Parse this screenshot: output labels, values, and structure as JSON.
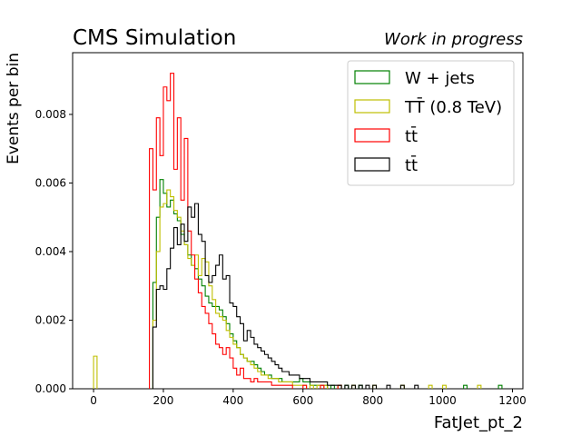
{
  "chart_data": {
    "type": "step-histogram",
    "title_left": "CMS Simulation",
    "title_right": "Work in progress",
    "xlabel": "FatJet_pt_2",
    "ylabel": "Events per bin",
    "xlim": [
      -60,
      1230
    ],
    "ylim": [
      0,
      0.0098
    ],
    "x_ticks": [
      0,
      200,
      400,
      600,
      800,
      1000,
      1200
    ],
    "y_ticks": [
      0.0,
      0.002,
      0.004,
      0.006,
      0.008
    ],
    "y_tick_labels": [
      "0.000",
      "0.002",
      "0.004",
      "0.006",
      "0.008"
    ],
    "grid": false,
    "legend_position": "top-right",
    "bin_width": 10,
    "series": [
      {
        "name": "W + jets",
        "color": "#008000",
        "points": [
          [
            170,
            0.0031
          ],
          [
            180,
            0.005
          ],
          [
            190,
            0.0061
          ],
          [
            200,
            0.0057
          ],
          [
            210,
            0.0053
          ],
          [
            220,
            0.0055
          ],
          [
            230,
            0.0051
          ],
          [
            240,
            0.0049
          ],
          [
            250,
            0.0045
          ],
          [
            260,
            0.0042
          ],
          [
            270,
            0.0039
          ],
          [
            280,
            0.0036
          ],
          [
            290,
            0.0035
          ],
          [
            300,
            0.0032
          ],
          [
            310,
            0.003
          ],
          [
            320,
            0.0027
          ],
          [
            330,
            0.0025
          ],
          [
            340,
            0.0024
          ],
          [
            350,
            0.0024
          ],
          [
            360,
            0.0023
          ],
          [
            370,
            0.0021
          ],
          [
            380,
            0.0019
          ],
          [
            390,
            0.0016
          ],
          [
            400,
            0.0014
          ],
          [
            410,
            0.0012
          ],
          [
            420,
            0.001
          ],
          [
            430,
            0.0009
          ],
          [
            440,
            0.0008
          ],
          [
            450,
            0.0008
          ],
          [
            460,
            0.0007
          ],
          [
            470,
            0.0006
          ],
          [
            480,
            0.0005
          ],
          [
            490,
            0.0004
          ],
          [
            500,
            0.0004
          ],
          [
            510,
            0.0003
          ],
          [
            520,
            0.0003
          ],
          [
            530,
            0.0003
          ],
          [
            540,
            0.0002
          ],
          [
            550,
            0.0002
          ],
          [
            560,
            0.0002
          ],
          [
            570,
            0.0002
          ],
          [
            580,
            0.0002
          ],
          [
            590,
            0.0003
          ],
          [
            600,
            0.0002
          ],
          [
            610,
            0.0002
          ],
          [
            620,
            0.0001
          ],
          [
            630,
            0.0001
          ],
          [
            640,
            0.0001
          ],
          [
            650,
            0.0001
          ],
          [
            660,
            0.0001
          ],
          [
            680,
            0.0001
          ],
          [
            700,
            0.0001
          ],
          [
            720,
            0.0001
          ],
          [
            760,
            0.0001
          ],
          [
            1060,
            0.0001
          ],
          [
            1160,
            0.0001
          ]
        ]
      },
      {
        "name": "TT̄ (0.8 TeV)",
        "color": "#bfbf00",
        "points": [
          [
            0,
            0.00095
          ],
          [
            170,
            0.002
          ],
          [
            180,
            0.004
          ],
          [
            190,
            0.0053
          ],
          [
            200,
            0.0054
          ],
          [
            210,
            0.0058
          ],
          [
            220,
            0.0056
          ],
          [
            230,
            0.0052
          ],
          [
            240,
            0.005
          ],
          [
            250,
            0.0046
          ],
          [
            260,
            0.0042
          ],
          [
            270,
            0.0038
          ],
          [
            280,
            0.0036
          ],
          [
            290,
            0.0039
          ],
          [
            300,
            0.0033
          ],
          [
            310,
            0.0038
          ],
          [
            320,
            0.0037
          ],
          [
            330,
            0.003
          ],
          [
            340,
            0.0026
          ],
          [
            350,
            0.0022
          ],
          [
            360,
            0.0021
          ],
          [
            370,
            0.002
          ],
          [
            380,
            0.0017
          ],
          [
            390,
            0.0015
          ],
          [
            400,
            0.0013
          ],
          [
            410,
            0.0012
          ],
          [
            420,
            0.001
          ],
          [
            430,
            0.0009
          ],
          [
            440,
            0.0008
          ],
          [
            450,
            0.0007
          ],
          [
            460,
            0.0006
          ],
          [
            470,
            0.0005
          ],
          [
            480,
            0.0004
          ],
          [
            490,
            0.0004
          ],
          [
            500,
            0.0003
          ],
          [
            510,
            0.0003
          ],
          [
            520,
            0.0003
          ],
          [
            530,
            0.0002
          ],
          [
            540,
            0.0002
          ],
          [
            550,
            0.0002
          ],
          [
            560,
            0.0002
          ],
          [
            570,
            0.0001
          ],
          [
            580,
            0.0001
          ],
          [
            590,
            0.0001
          ],
          [
            600,
            0.0001
          ],
          [
            620,
            0.0001
          ],
          [
            640,
            0.0001
          ],
          [
            660,
            0.0001
          ],
          [
            700,
            0.0001
          ],
          [
            740,
            0.0001
          ],
          [
            800,
            0.0001
          ],
          [
            880,
            0.0001
          ],
          [
            960,
            0.0001
          ],
          [
            1000,
            0.0001
          ],
          [
            1100,
            0.0001
          ]
        ]
      },
      {
        "name": "tt̄",
        "color": "#ff0000",
        "points": [
          [
            160,
            0.007
          ],
          [
            170,
            0.0058
          ],
          [
            180,
            0.0079
          ],
          [
            190,
            0.0068
          ],
          [
            200,
            0.0088
          ],
          [
            210,
            0.0084
          ],
          [
            220,
            0.0092
          ],
          [
            230,
            0.0064
          ],
          [
            240,
            0.0079
          ],
          [
            250,
            0.0055
          ],
          [
            260,
            0.0073
          ],
          [
            270,
            0.0046
          ],
          [
            280,
            0.0039
          ],
          [
            290,
            0.0032
          ],
          [
            300,
            0.0028
          ],
          [
            310,
            0.0024
          ],
          [
            320,
            0.0022
          ],
          [
            330,
            0.0019
          ],
          [
            340,
            0.0016
          ],
          [
            350,
            0.0013
          ],
          [
            360,
            0.0012
          ],
          [
            370,
            0.001
          ],
          [
            380,
            0.0012
          ],
          [
            390,
            0.0009
          ],
          [
            400,
            0.0006
          ],
          [
            410,
            0.0004
          ],
          [
            420,
            0.0006
          ],
          [
            430,
            0.0003
          ],
          [
            440,
            0.0003
          ],
          [
            450,
            0.0002
          ],
          [
            460,
            0.0003
          ],
          [
            470,
            0.0002
          ],
          [
            480,
            0.0002
          ],
          [
            490,
            0.0002
          ],
          [
            500,
            0.0002
          ],
          [
            510,
            0.0001
          ],
          [
            520,
            0.0001
          ],
          [
            530,
            0.0001
          ],
          [
            540,
            0.0001
          ],
          [
            550,
            0.0001
          ],
          [
            560,
            0.0001
          ],
          [
            600,
            0.0001
          ],
          [
            650,
            0.0001
          ],
          [
            700,
            0.0001
          ]
        ]
      },
      {
        "name": "tt̄",
        "color": "#000000",
        "points": [
          [
            170,
            0.0018
          ],
          [
            180,
            0.0029
          ],
          [
            190,
            0.003
          ],
          [
            200,
            0.0029
          ],
          [
            210,
            0.0035
          ],
          [
            220,
            0.0041
          ],
          [
            230,
            0.0047
          ],
          [
            240,
            0.0042
          ],
          [
            250,
            0.0048
          ],
          [
            260,
            0.0043
          ],
          [
            270,
            0.0053
          ],
          [
            280,
            0.005
          ],
          [
            290,
            0.0054
          ],
          [
            300,
            0.0045
          ],
          [
            310,
            0.0043
          ],
          [
            320,
            0.0033
          ],
          [
            330,
            0.0031
          ],
          [
            340,
            0.0033
          ],
          [
            350,
            0.0036
          ],
          [
            360,
            0.0039
          ],
          [
            370,
            0.0032
          ],
          [
            380,
            0.0033
          ],
          [
            390,
            0.0025
          ],
          [
            400,
            0.0024
          ],
          [
            410,
            0.0021
          ],
          [
            420,
            0.0019
          ],
          [
            430,
            0.0014
          ],
          [
            440,
            0.0017
          ],
          [
            450,
            0.0015
          ],
          [
            460,
            0.0013
          ],
          [
            470,
            0.0012
          ],
          [
            480,
            0.0011
          ],
          [
            490,
            0.001
          ],
          [
            500,
            0.0009
          ],
          [
            510,
            0.0008
          ],
          [
            520,
            0.0007
          ],
          [
            530,
            0.0006
          ],
          [
            540,
            0.0005
          ],
          [
            550,
            0.0005
          ],
          [
            560,
            0.0004
          ],
          [
            570,
            0.0004
          ],
          [
            580,
            0.0004
          ],
          [
            590,
            0.0003
          ],
          [
            600,
            0.0003
          ],
          [
            610,
            0.0003
          ],
          [
            620,
            0.0002
          ],
          [
            630,
            0.0002
          ],
          [
            640,
            0.0002
          ],
          [
            650,
            0.0002
          ],
          [
            660,
            0.0002
          ],
          [
            670,
            0.0001
          ],
          [
            680,
            0.0001
          ],
          [
            690,
            0.0001
          ],
          [
            700,
            0.0001
          ],
          [
            720,
            0.0001
          ],
          [
            740,
            0.0001
          ],
          [
            760,
            0.0001
          ],
          [
            780,
            0.0001
          ],
          [
            800,
            0.0001
          ],
          [
            840,
            0.0001
          ],
          [
            880,
            0.0001
          ],
          [
            920,
            0.0001
          ]
        ]
      }
    ]
  }
}
